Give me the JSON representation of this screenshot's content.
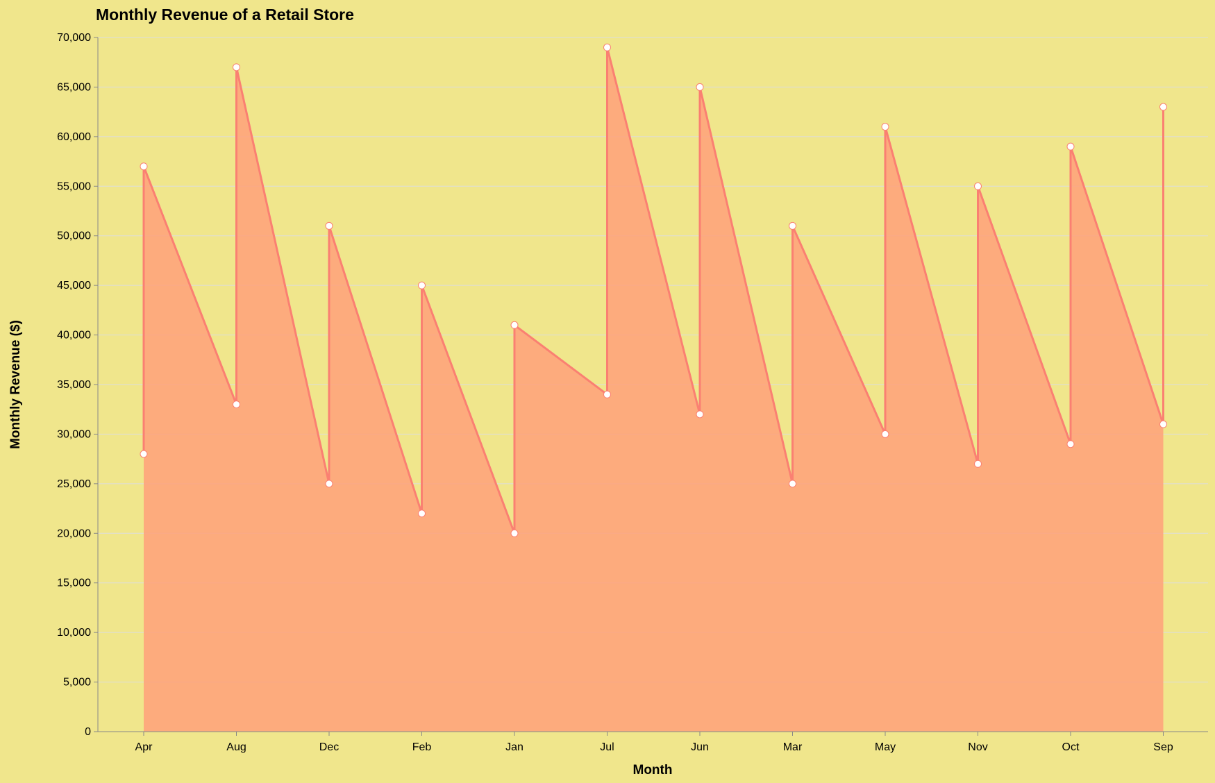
{
  "chart_data": {
    "type": "area",
    "title": "Monthly Revenue of a Retail Store",
    "xlabel": "Month",
    "ylabel": "Monthly Revenue ($)",
    "ylim": [
      0,
      70000
    ],
    "y_ticks": [
      0,
      5000,
      10000,
      15000,
      20000,
      25000,
      30000,
      35000,
      40000,
      45000,
      50000,
      55000,
      60000,
      65000,
      70000
    ],
    "y_tick_labels": [
      "0",
      "5,000",
      "10,000",
      "15,000",
      "20,000",
      "25,000",
      "30,000",
      "35,000",
      "40,000",
      "45,000",
      "50,000",
      "55,000",
      "60,000",
      "65,000",
      "70,000"
    ],
    "categories": [
      "Apr",
      "Aug",
      "Dec",
      "Feb",
      "Jan",
      "Jul",
      "Jun",
      "Mar",
      "May",
      "Nov",
      "Oct",
      "Sep"
    ],
    "series": [
      {
        "values": [
          [
            28000,
            57000
          ],
          [
            33000,
            67000
          ],
          [
            25000,
            51000
          ],
          [
            22000,
            45000
          ],
          [
            20000,
            41000
          ],
          [
            34000,
            69000
          ],
          [
            32000,
            65000
          ],
          [
            25000,
            51000
          ],
          [
            30000,
            61000
          ],
          [
            27000,
            55000
          ],
          [
            29000,
            59000
          ],
          [
            31000,
            63000
          ]
        ]
      }
    ],
    "grid": true,
    "colors": {
      "background": "#f0e68c",
      "area_fill": "#ffa07a",
      "area_stroke": "#fa8072",
      "point": "#ffffff",
      "grid": "#dddddd",
      "axis": "#888888"
    }
  }
}
